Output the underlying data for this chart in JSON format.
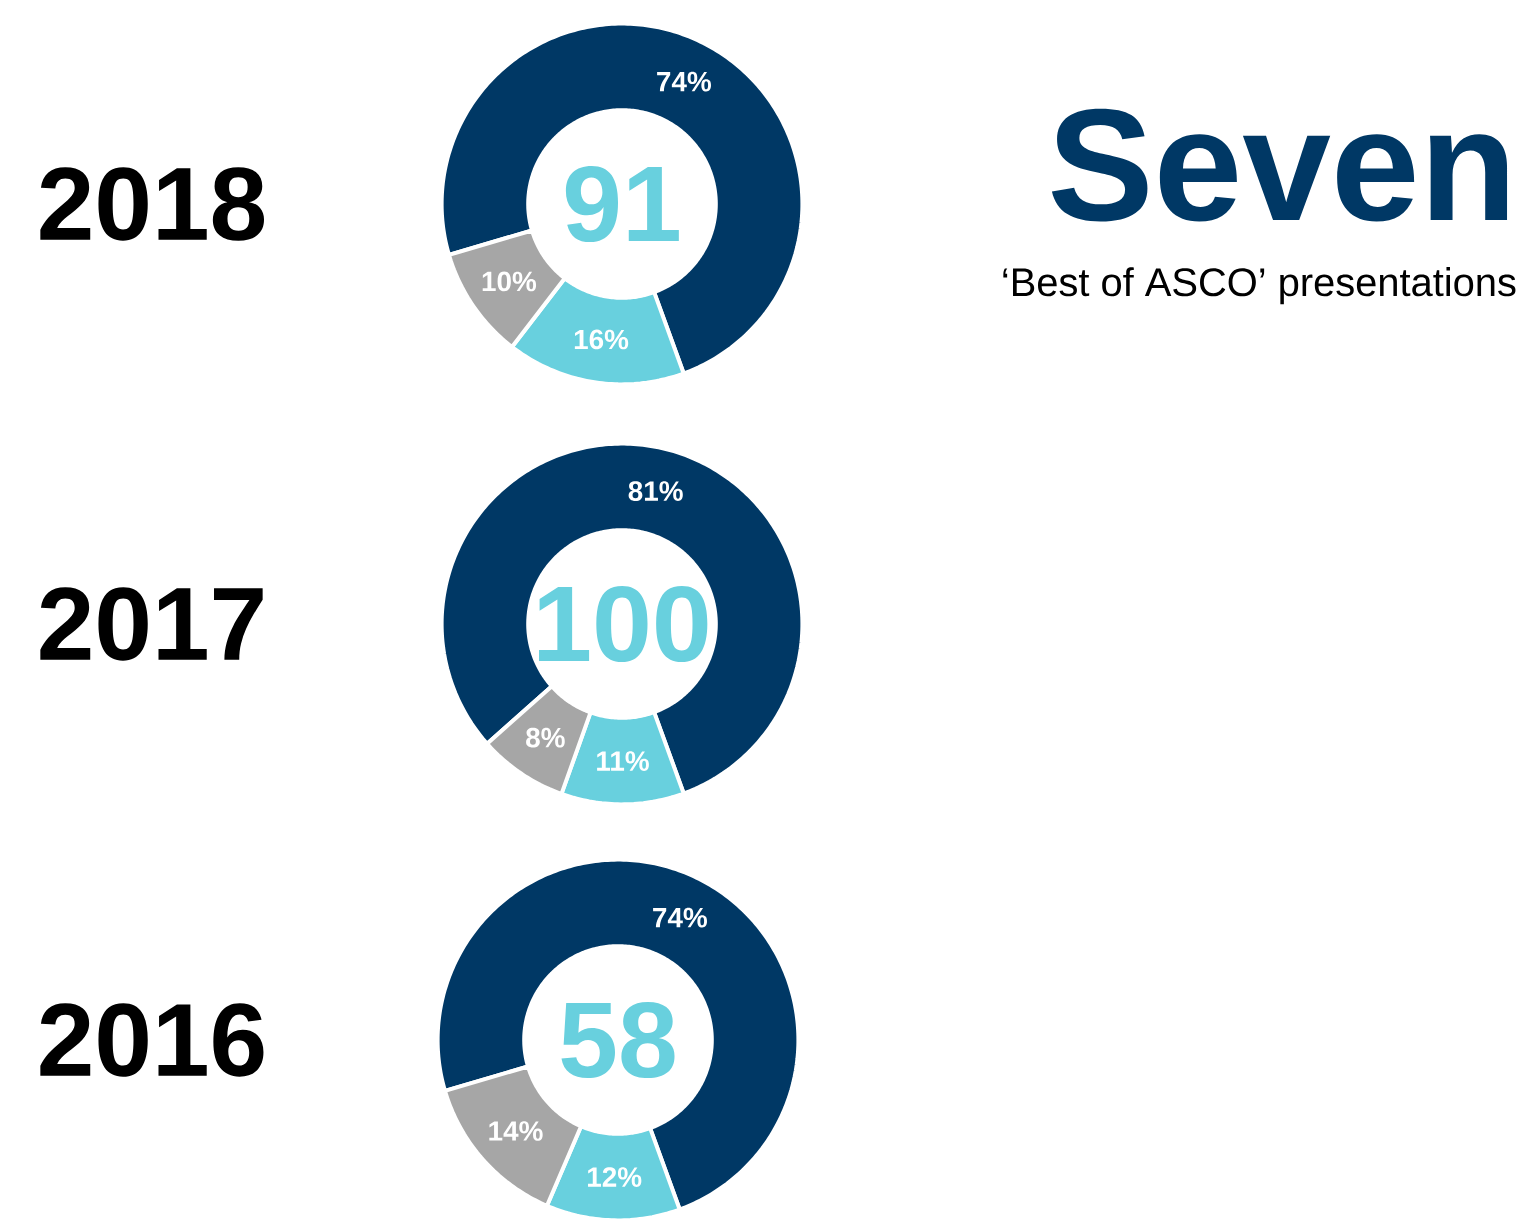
{
  "chart_data": [
    {
      "type": "donut",
      "title": "2018",
      "categories": [
        null,
        null,
        null
      ],
      "values": [
        74,
        16,
        10
      ],
      "colors": [
        "#003865",
        "#68d0de",
        "#a6a6a6"
      ],
      "value_labels": [
        "74%",
        "16%",
        "10%"
      ],
      "annotations": [
        "91",
        "Seven",
        "‘Best of ASCO’ presentations"
      ]
    },
    {
      "type": "donut",
      "title": "2017",
      "categories": [
        null,
        null,
        null
      ],
      "values": [
        81,
        11,
        8
      ],
      "colors": [
        "#003865",
        "#68d0de",
        "#a6a6a6"
      ],
      "value_labels": [
        "81%",
        "11%",
        "8%"
      ],
      "annotations": [
        "100"
      ]
    },
    {
      "type": "donut",
      "title": "2016",
      "categories": [
        null,
        null,
        null
      ],
      "values": [
        74,
        12,
        14
      ],
      "colors": [
        "#003865",
        "#68d0de",
        "#a6a6a6"
      ],
      "value_labels": [
        "74%",
        "12%",
        "14%"
      ],
      "annotations": [
        "58"
      ]
    }
  ]
}
